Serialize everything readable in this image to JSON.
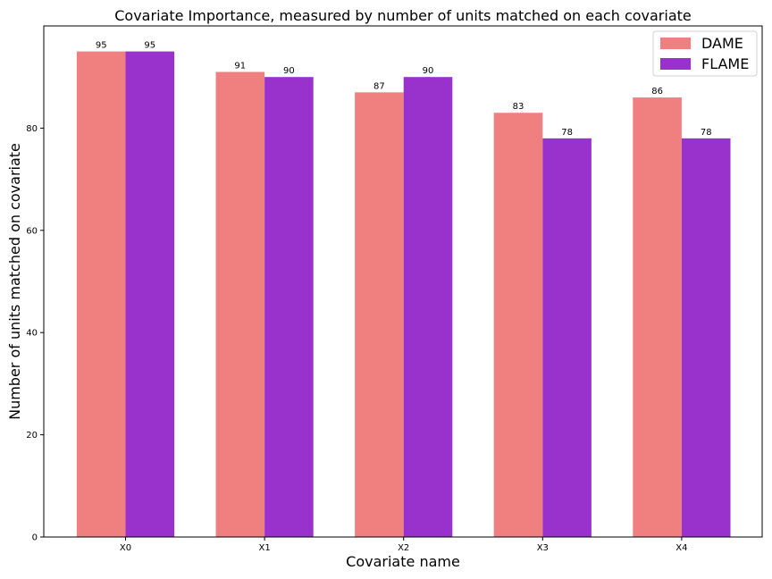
{
  "chart_data": {
    "type": "bar",
    "title": "Covariate Importance, measured by number of units matched on each covariate",
    "xlabel": "Covariate name",
    "ylabel": "Number of units matched on covariate",
    "categories": [
      "X0",
      "X1",
      "X2",
      "X3",
      "X4"
    ],
    "series": [
      {
        "name": "DAME",
        "color": "#f08080",
        "values": [
          95,
          91,
          87,
          83,
          86
        ]
      },
      {
        "name": "FLAME",
        "color": "#9932cc",
        "values": [
          95,
          90,
          90,
          78,
          78
        ]
      }
    ],
    "ylim": [
      0,
      100
    ],
    "yticks": [
      0,
      20,
      40,
      60,
      80
    ],
    "grid": false,
    "legend": "top-right"
  }
}
